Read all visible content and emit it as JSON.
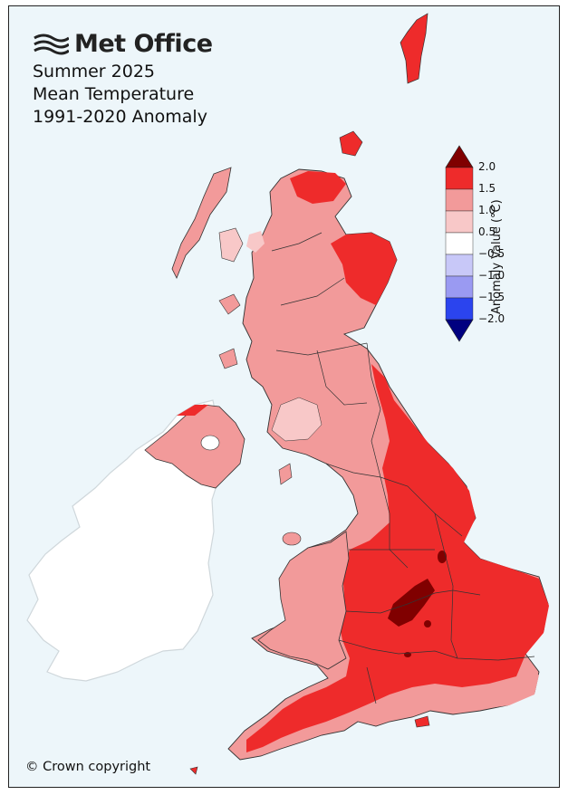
{
  "header": {
    "brand": "Met Office",
    "title_line1": "Summer 2025",
    "title_line2": "Mean Temperature",
    "title_line3": "1991-2020 Anomaly"
  },
  "footer": {
    "copyright": "© Crown copyright"
  },
  "legend": {
    "axis_title": "Anomaly Value (°C)",
    "ticks": [
      "2.0",
      "1.5",
      "1.0",
      "0.5",
      "−0.5",
      "−1.0",
      "−1.5",
      "−2.0"
    ],
    "bins": [
      {
        "range": "> 2.0",
        "color": "#800000"
      },
      {
        "range": "1.5 to 2.0",
        "color": "#ee2b2b"
      },
      {
        "range": "1.0 to 1.5",
        "color": "#f29a9a"
      },
      {
        "range": "0.5 to 1.0",
        "color": "#f8c8c8"
      },
      {
        "range": "-0.5 to 0.5",
        "color": "#ffffff"
      },
      {
        "range": "-1.0 to -0.5",
        "color": "#c8c8f8"
      },
      {
        "range": "-1.5 to -1.0",
        "color": "#9a9af2"
      },
      {
        "range": "-2.0 to -1.5",
        "color": "#2b44ee"
      },
      {
        "range": "< -2.0",
        "color": "#000080"
      }
    ]
  },
  "colors": {
    "background": "#edf6fa",
    "ireland": "#ffffff",
    "anomaly_1_0_to_1_5": "#f29a9a",
    "anomaly_1_5_to_2_0": "#ee2b2b",
    "anomaly_gt_2_0": "#800000",
    "anomaly_0_5_to_1_0": "#f8c8c8"
  }
}
